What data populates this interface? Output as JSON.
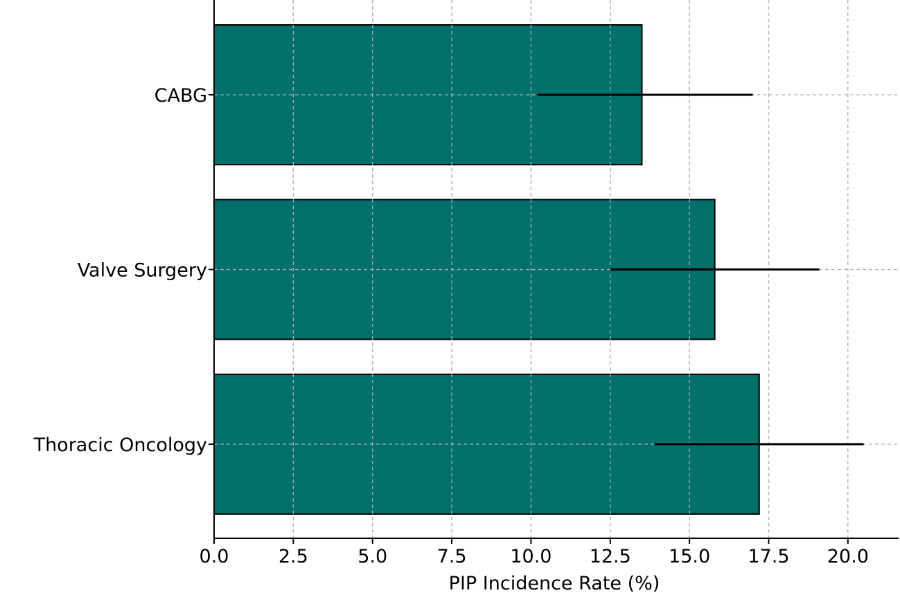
{
  "chart_data": {
    "type": "bar",
    "orientation": "horizontal",
    "categories": [
      "CABG",
      "Valve Surgery",
      "Thoracic Oncology"
    ],
    "values": [
      13.5,
      15.8,
      17.2
    ],
    "error_low": [
      10.2,
      12.5,
      13.9
    ],
    "error_high": [
      17.0,
      19.1,
      20.5
    ],
    "xlabel": "PIP Incidence Rate (%)",
    "ylabel": "",
    "title": "",
    "xlim": [
      0,
      21.6
    ],
    "xticks": [
      "0.0",
      "2.5",
      "5.0",
      "7.5",
      "10.0",
      "12.5",
      "15.0",
      "17.5",
      "20.0"
    ],
    "grid": true,
    "bar_color": "#00706b"
  }
}
